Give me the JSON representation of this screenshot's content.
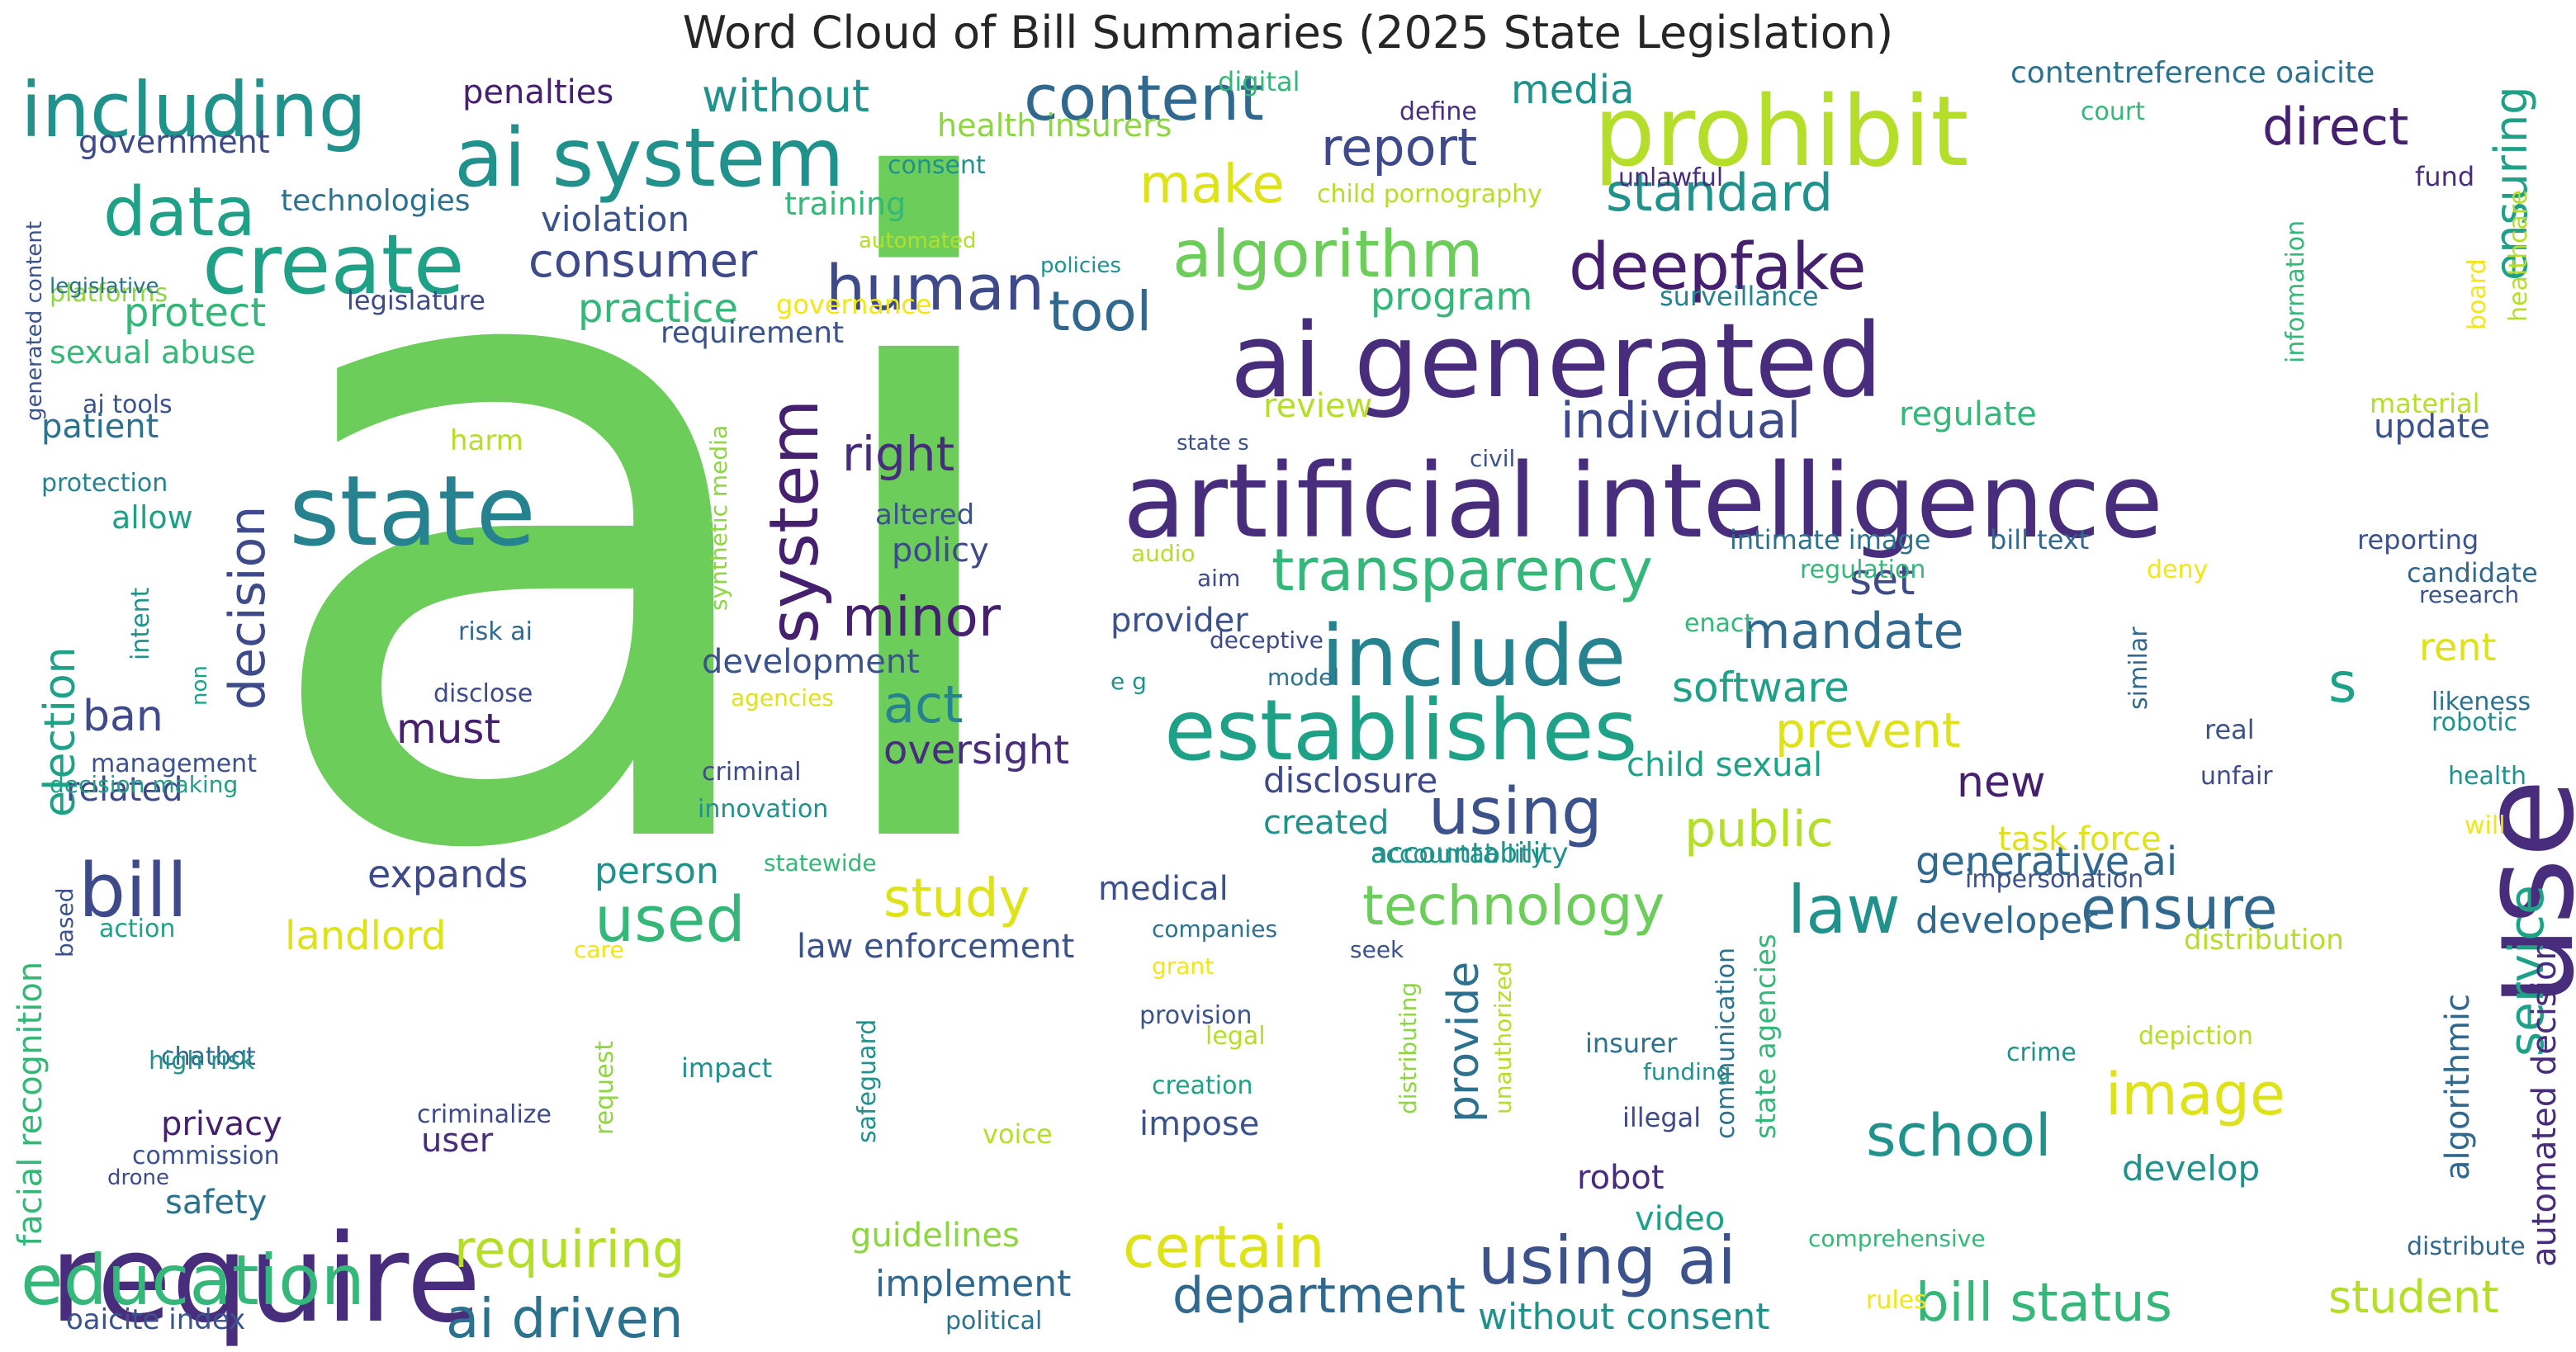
{
  "title": "Word Cloud of Bill Summaries (2025 State Legislation)",
  "palette": {
    "dark_purple": "#44206e",
    "purple": "#472d7b",
    "indigo": "#3e4a89",
    "slate_blue": "#3b528b",
    "steel_blue": "#31688e",
    "teal_blue": "#2c728e",
    "teal": "#26828e",
    "sea": "#21918c",
    "jade": "#1fa187",
    "emerald": "#35b779",
    "green": "#4ac16d",
    "leaf": "#6ccd5a",
    "lime": "#8ed542",
    "yellow_green": "#b5de2b",
    "gold": "#dde318",
    "yellow": "#f2e51a"
  },
  "words": [
    "ai",
    "use",
    "require",
    "artificial intelligence",
    "ai generated",
    "prohibit",
    "establishes",
    "include",
    "ai system",
    "state",
    "create",
    "including",
    "content",
    "deepfake",
    "algorithm",
    "system",
    "data",
    "bill",
    "education",
    "human",
    "using",
    "decision",
    "transparency",
    "certain",
    "using ai",
    "used",
    "law",
    "ensure",
    "image",
    "school",
    "ai driven",
    "bill status",
    "minor",
    "technology",
    "tool",
    "report",
    "standard",
    "individual",
    "direct",
    "ensuring",
    "right",
    "act",
    "consumer",
    "mandate",
    "public",
    "department",
    "study",
    "requiring",
    "s",
    "prevent",
    "make",
    "without",
    "media",
    "election",
    "practice",
    "protect",
    "generative ai",
    "service",
    "oversight",
    "landlord",
    "software",
    "rent",
    "student",
    "must",
    "ban",
    "expands",
    "person",
    "provide",
    "develop",
    "robot",
    "impose",
    "user",
    "set",
    "program",
    "review",
    "violation",
    "development",
    "disclosure",
    "new",
    "medical",
    "law enforcement",
    "related",
    "privacy",
    "policy",
    "safety",
    "implement",
    "without consent",
    "developer",
    "facial recognition",
    "penalties",
    "government",
    "training",
    "technologies",
    "legislature",
    "sexual abuse",
    "patient",
    "allow",
    "requirement",
    "provider",
    "algorithmic",
    "automated decision",
    "video",
    "child sexual",
    "created",
    "accountability",
    "guidelines",
    "task force",
    "update",
    "harm",
    "altered",
    "regulate",
    "health insurers",
    "digital",
    "define",
    "consent",
    "child pornography",
    "governance",
    "surveillance",
    "contentreference oaicite",
    "court",
    "fund",
    "unlawful",
    "information",
    "board",
    "healthcare",
    "material",
    "candidate",
    "research",
    "reporting",
    "intimate image",
    "bill text",
    "regulation",
    "deny",
    "likeness",
    "robotic",
    "health",
    "unfair",
    "will",
    "real",
    "similar",
    "distribution",
    "distribute",
    "depiction",
    "crime",
    "communication",
    "state agencies",
    "impersonation",
    "accountability",
    "funding",
    "illegal",
    "insurer",
    "unauthorized",
    "distributing",
    "creation",
    "legal",
    "provision",
    "grant",
    "seek",
    "companies",
    "care",
    "voice",
    "impact",
    "safeguard",
    "request",
    "criminalize",
    "commission",
    "drone",
    "chatbot",
    "high risk",
    "action",
    "based",
    "statewide",
    "innovation",
    "criminal",
    "agencies",
    "decision making",
    "management",
    "non",
    "intent",
    "disclose",
    "risk ai",
    "protection",
    "ai tools",
    "platforms",
    "legislative",
    "generated content",
    "automated",
    "policies",
    "synthetic media",
    "audio",
    "aim",
    "deceptive",
    "model",
    "e g",
    "state s",
    "civil",
    "enact",
    "rules",
    "political",
    "oaicite index",
    "comprehensive"
  ]
}
